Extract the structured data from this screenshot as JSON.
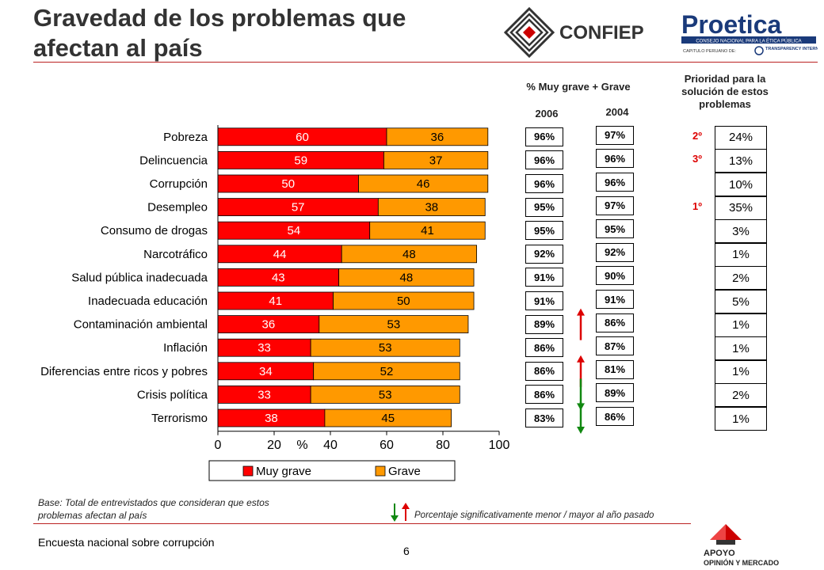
{
  "slide": {
    "title_line1": "Gravedad de los problemas que",
    "title_line2": "afectan al país",
    "footer_title": "Encuesta nacional sobre corrupción",
    "page_number": "6",
    "base_note_line1": "Base: Total de entrevistados que consideran que estos",
    "base_note_line2": "problemas afectan al país",
    "arrow_note": "Porcentaje significativamente menor / mayor al año pasado"
  },
  "logos": {
    "confiep": "CONFIEP",
    "proetica_main": "Proetica",
    "proetica_sub": "CONSEJO NACIONAL PARA LA ÉTICA PÚBLICA",
    "proetica_sub2": "CAPITULO PERUANO DE:",
    "transparency": "TRANSPARENCY INTERNATIONAL",
    "apoyo_line1": "APOYO",
    "apoyo_line2": "OPINIÓN Y MERCADO"
  },
  "columns": {
    "pct_header": "% Muy grave + Grave",
    "year_2006": "2006",
    "year_2004": "2004",
    "priority_header": "Prioridad para la solución de estos problemas"
  },
  "colors": {
    "muy_grave": "#ff0000",
    "grave": "#ff9900",
    "arrow_up": "#dd0000",
    "arrow_down": "#118811",
    "rank": "#dd0000"
  },
  "chart_data": {
    "type": "bar",
    "orientation": "horizontal-stacked",
    "categories": [
      "Pobreza",
      "Delincuencia",
      "Corrupción",
      "Desempleo",
      "Consumo de drogas",
      "Narcotráfico",
      "Salud pública inadecuada",
      "Inadecuada educación",
      "Contaminación ambiental",
      "Inflación",
      "Diferencias entre ricos y pobres",
      "Crisis política",
      "Terrorismo"
    ],
    "series": [
      {
        "name": "Muy grave",
        "values": [
          60,
          59,
          50,
          57,
          54,
          44,
          43,
          41,
          36,
          33,
          34,
          33,
          38
        ]
      },
      {
        "name": "Grave",
        "values": [
          36,
          37,
          46,
          38,
          41,
          48,
          48,
          50,
          53,
          53,
          52,
          53,
          45
        ]
      }
    ],
    "xlabel": "%",
    "xlim": [
      0,
      100
    ],
    "xticks": [
      "0",
      "20",
      "40",
      "60",
      "80",
      "100"
    ],
    "legend_position": "bottom"
  },
  "table": {
    "pct_2006": [
      "96%",
      "96%",
      "96%",
      "95%",
      "95%",
      "92%",
      "91%",
      "91%",
      "89%",
      "86%",
      "86%",
      "86%",
      "83%"
    ],
    "pct_2004": [
      "97%",
      "96%",
      "96%",
      "97%",
      "95%",
      "92%",
      "90%",
      "91%",
      "86%",
      "87%",
      "81%",
      "89%",
      "86%"
    ],
    "priority": [
      "24%",
      "13%",
      "10%",
      "35%",
      "3%",
      "1%",
      "2%",
      "5%",
      "1%",
      "1%",
      "1%",
      "2%",
      "1%"
    ],
    "ranks": [
      {
        "row": 0,
        "label": "2º"
      },
      {
        "row": 1,
        "label": "3º"
      },
      {
        "row": 3,
        "label": "1º"
      }
    ],
    "arrows": [
      {
        "row": 8,
        "dir": "up"
      },
      {
        "row": 10,
        "dir": "up"
      },
      {
        "row": 11,
        "dir": "down"
      },
      {
        "row": 12,
        "dir": "down"
      }
    ]
  }
}
